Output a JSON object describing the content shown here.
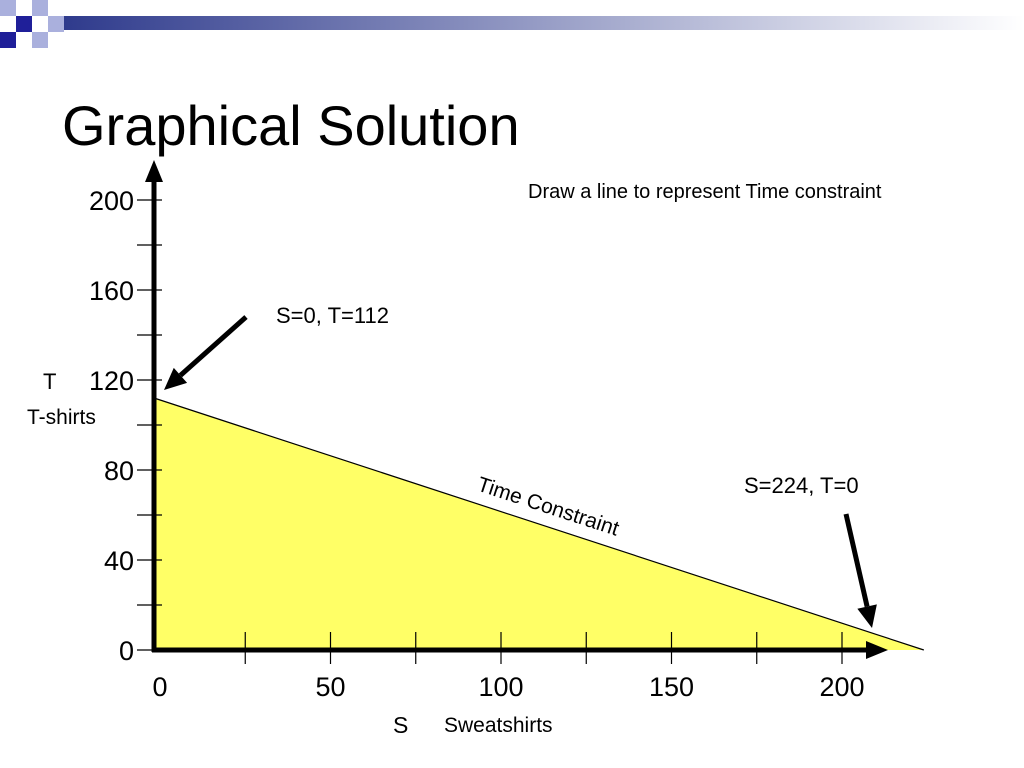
{
  "slide": {
    "title": "Graphical Solution",
    "instruction": "Draw a line to represent Time constraint",
    "colors": {
      "header_bar": "#2e3a8c",
      "header_square_dark": "#1f1f99",
      "header_square_light": "#aab0dd",
      "feasible_fill": "#ffff66",
      "axis": "#000000"
    },
    "header_icon": "decorative-squares"
  },
  "chart_data": {
    "type": "area",
    "x_axis": {
      "variable": "S",
      "label": "Sweatshirts",
      "ticks": [
        0,
        50,
        100,
        150,
        200
      ],
      "minor_ticks": [
        25,
        75,
        125,
        175
      ],
      "range": [
        0,
        215
      ]
    },
    "y_axis": {
      "variable": "T",
      "label": "T-shirts",
      "ticks": [
        0,
        40,
        80,
        120,
        160,
        200
      ],
      "minor_ticks": [
        20,
        60,
        100,
        140,
        180
      ],
      "range": [
        0,
        200
      ]
    },
    "constraint_line": {
      "label": "Time Constraint",
      "points": [
        {
          "S": 0,
          "T": 112
        },
        {
          "S": 224,
          "T": 0
        }
      ]
    },
    "annotations": [
      {
        "text": "S=0, T=112",
        "S": 0,
        "T": 112
      },
      {
        "text": "S=224, T=0",
        "S": 224,
        "T": 0
      }
    ]
  }
}
